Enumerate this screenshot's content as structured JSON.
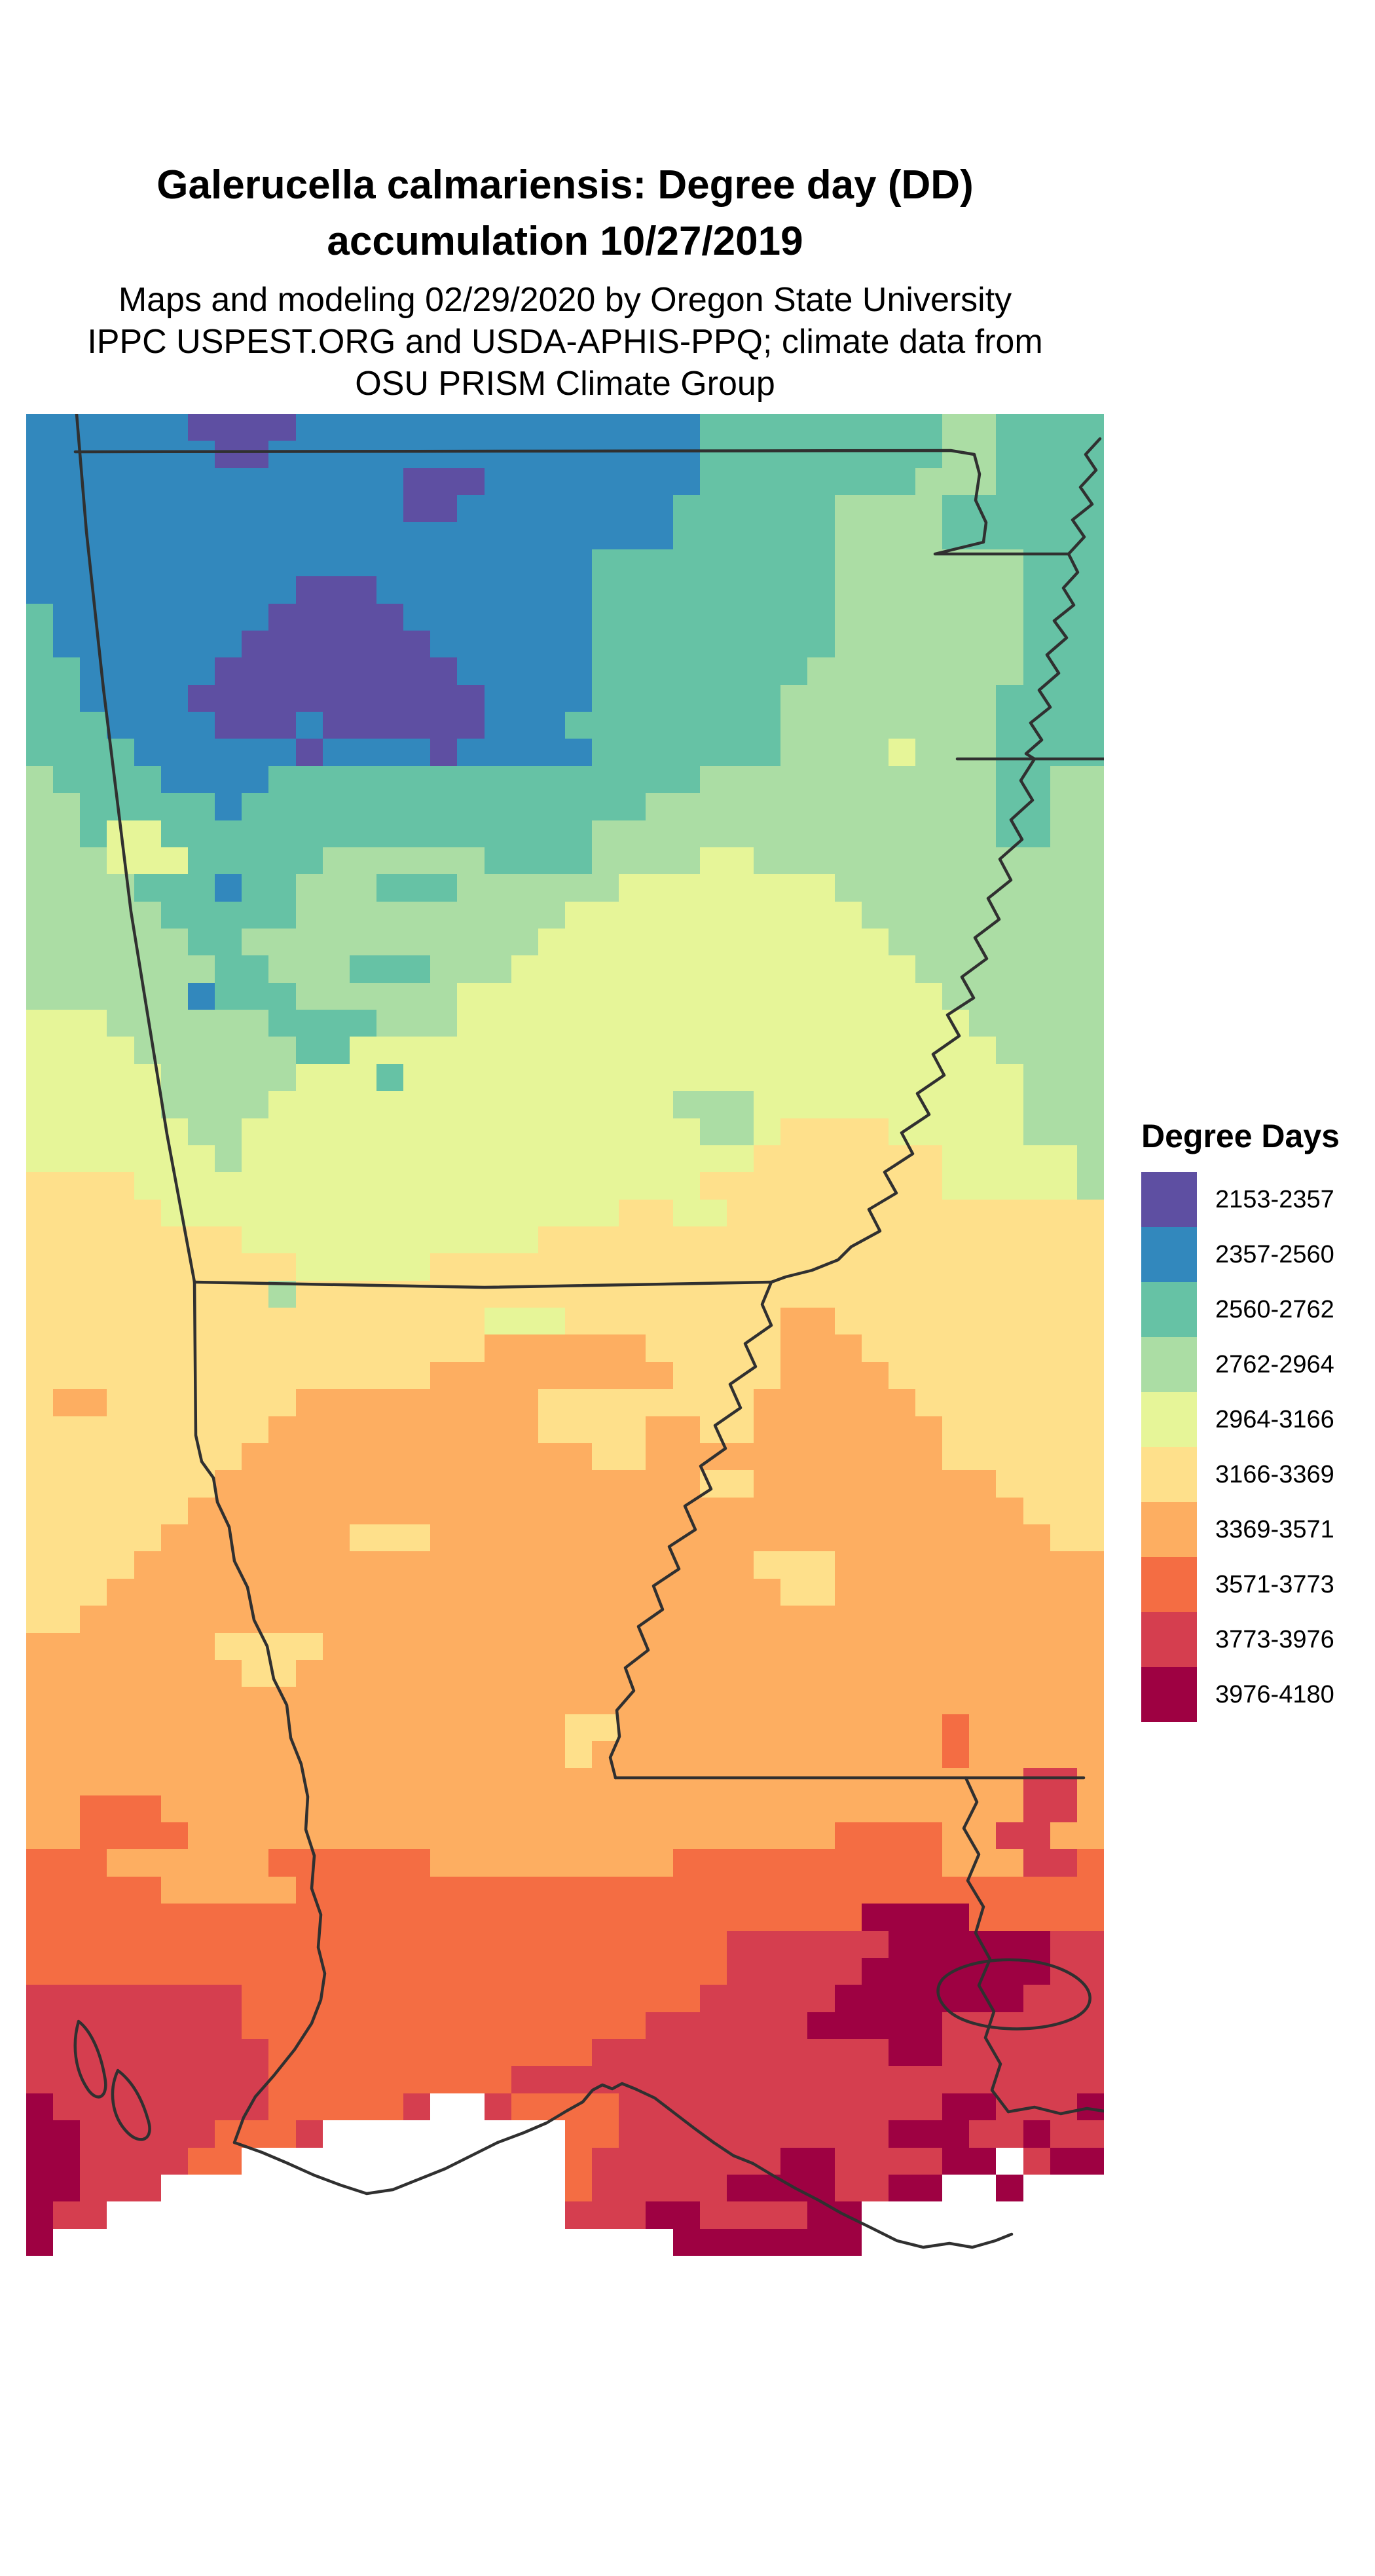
{
  "title": {
    "line1": "Galerucella calmariensis: Degree day (DD)",
    "line2": "accumulation 10/27/2019"
  },
  "subtitle": {
    "line1": "Maps and modeling 02/29/2020 by Oregon State University",
    "line2": "IPPC USPEST.ORG and USDA-APHIS-PPQ; climate data from",
    "line3": "OSU PRISM Climate Group"
  },
  "legend": {
    "title": "Degree Days",
    "entries": [
      {
        "label": "2153-2357",
        "color": "#5E4FA2"
      },
      {
        "label": "2357-2560",
        "color": "#3288BD"
      },
      {
        "label": "2560-2762",
        "color": "#66C2A5"
      },
      {
        "label": "2762-2964",
        "color": "#ABDDA4"
      },
      {
        "label": "2964-3166",
        "color": "#E6F598"
      },
      {
        "label": "3166-3369",
        "color": "#FEE08B"
      },
      {
        "label": "3369-3571",
        "color": "#FDAE61"
      },
      {
        "label": "3571-3773",
        "color": "#F46D43"
      },
      {
        "label": "3773-3976",
        "color": "#D53E4F"
      },
      {
        "label": "3976-4180",
        "color": "#9E0142"
      }
    ]
  },
  "map": {
    "boundary_color": "#303030",
    "background_color": "#ffffff",
    "band_colors": [
      "#5E4FA2",
      "#3288BD",
      "#66C2A5",
      "#ABDDA4",
      "#E6F598",
      "#FEE08B",
      "#FDAE61",
      "#F46D43",
      "#D53E4F",
      "#9E0142"
    ],
    "nodata_char": ".",
    "grid": {
      "cols": 40,
      "rows": 68,
      "cells": [
        "1111110000111111111111111222222222332222",
        "1111111001111111111111111222222222332222",
        "1111111111111100011111111222222223332222",
        "1111111111111100111111112222223333222222",
        "1111111111111111111111112222223333222222",
        "1111111111111111111112222222223333333222",
        "1111111111000111111112222222223333333222",
        "2111111110000011111112222222223333333222",
        "2111111100000001111112222222223333333222",
        "2211111000000000111112222222233333333222",
        "2211110000000000011112222222333333332222",
        "2221111000100000011122222222333333332222",
        "2222111111011110111112222222333343332222",
        "3222211112222222222222222333333333332233",
        "3322222122222222222222233333333333332233",
        "3324422222222222222223333333333333332233",
        "3334442222233333322223333443333333333333",
        "3333222122333222333333444444443333333333",
        "3333322222333333333344444444444333333333",
        "3333332233333333333444444444444433333333",
        "3333333223332223334444444444444443333333",
        "3333331222333333444444444444444444333333",
        "4443333332222333444444444444444444433333",
        "4444333333224444444444444444444444443333",
        "4444433333444244444444444444444444444333",
        "4444433334444444444444443334444444444333",
        "4444443344444444444444444334555544444333",
        "4444444344444444444444444445555555444443",
        "5555444444444444444444444555555555444443",
        "5555544444444444444444554455555555555555",
        "5555555544444444444555555555555555555555",
        "5555555555444445555555555555555555555555",
        "5555555553555555555555555555555555555555",
        "5555555555555555544455555555665555555555",
        "5555555555555555566666655555666555555555",
        "5555555555555556666666665555666655555555",
        "5665555555666666666555555556666665555555",
        "5555555556666666666555566556666666555555",
        "5555555566666666666665566666666666555555",
        "5555555666666666666666666556666666665555",
        "5555556666666666666666666666666666666555",
        "5555566666665556666666666666666666666655",
        "5555666666666666666666666665556666666666",
        "5556666666666666666666666666556666666666",
        "5566666666666666666666666666666666666666",
        "6666666555566666666666666666666666666666",
        "6666666655666666666666666666666666666666",
        "6666666666666666666666666666666666666666",
        "6666666666666666666655666666666666766666",
        "6666666666666666666656666666666666766666",
        "6666666666666666666666666666666666666886",
        "6677766666666666666666666666666666666886",
        "6677776666666666666666666666667777668866",
        "7776666667777776666666667777777777666887",
        "7777766666777777777777777777777777777777",
        "7777777777777777777777777777777999977777",
        "7777777777777777777777777788888899999988",
        "7777777777777777777777777788888999999988",
        "8888888877777777777777777888889999999888",
        "8888888877777777777777788888899999888888",
        "8888888887777777777778888888888899888888",
        "8888888887777777778888888888888888888888",
        "988888888777778..87777888888888888998889",
        "99888887778.........77888888888899988988",
        "99888877............7888888899888899.899",
        "99888...............78888899998899..9...",
        "988.................88899888899.........",
        "9.......................9999999........."
      ]
    }
  }
}
